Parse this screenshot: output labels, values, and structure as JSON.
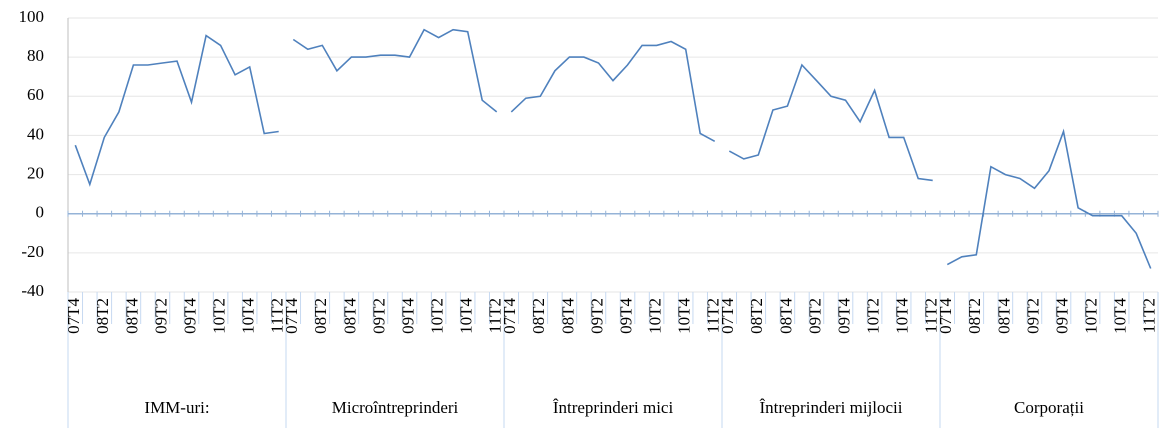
{
  "chart_data": {
    "type": "line",
    "color": "#4f81bd",
    "grid": true,
    "ylim": [
      -40,
      100
    ],
    "yticks": [
      -40,
      -20,
      0,
      20,
      40,
      60,
      80,
      100
    ],
    "categories": [
      "07T4",
      null,
      "08T2",
      null,
      "08T4",
      null,
      "09T2",
      null,
      "09T4",
      null,
      "10T2",
      null,
      "10T4",
      null,
      "11T2"
    ],
    "groups": [
      {
        "label": "IMM-uri:",
        "values": [
          35,
          15,
          39,
          52,
          76,
          76,
          77,
          78,
          57,
          91,
          86,
          71,
          75,
          41,
          42
        ]
      },
      {
        "label": "Microîntreprinderi",
        "values": [
          89,
          84,
          86,
          73,
          80,
          80,
          81,
          81,
          80,
          94,
          90,
          94,
          93,
          58,
          52
        ]
      },
      {
        "label": "Întreprinderi mici",
        "values": [
          52,
          59,
          60,
          73,
          80,
          80,
          77,
          68,
          76,
          86,
          86,
          88,
          84,
          41,
          37
        ]
      },
      {
        "label": "Întreprinderi mijlocii",
        "values": [
          32,
          28,
          30,
          53,
          55,
          76,
          68,
          60,
          58,
          47,
          63,
          39,
          39,
          18,
          17
        ]
      },
      {
        "label": "Corporații",
        "values": [
          -26,
          -22,
          -21,
          24,
          20,
          18,
          13,
          22,
          42,
          3,
          -1,
          -1,
          -1,
          -10,
          -28
        ]
      }
    ]
  }
}
